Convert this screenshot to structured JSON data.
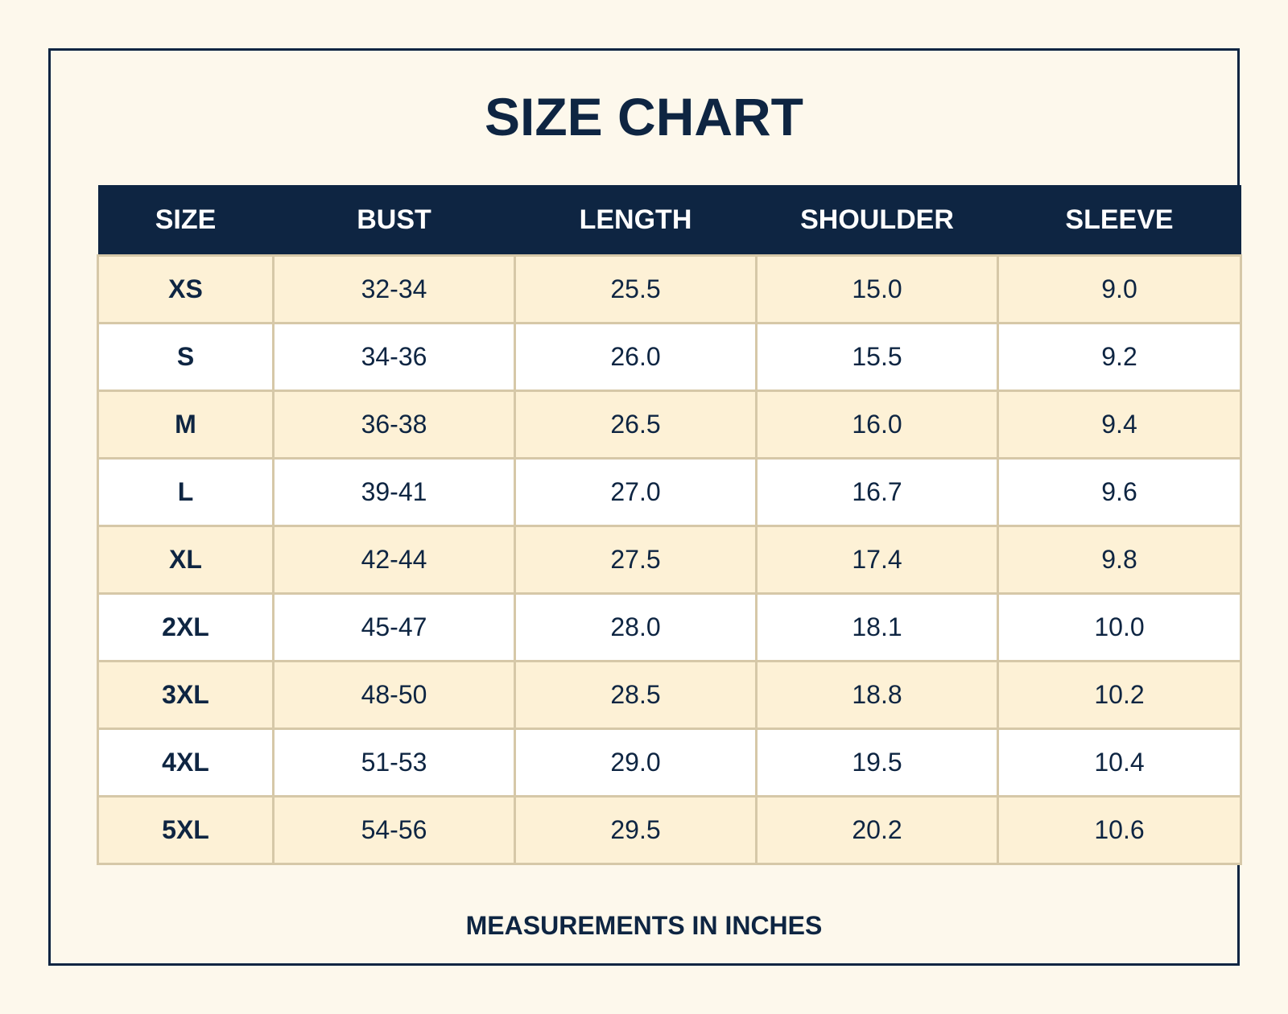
{
  "title": "SIZE CHART",
  "columns": [
    "SIZE",
    "BUST",
    "LENGTH",
    "SHOULDER",
    "SLEEVE"
  ],
  "rows": [
    {
      "size": "XS",
      "bust": "32-34",
      "length": "25.5",
      "shoulder": "15.0",
      "sleeve": "9.0"
    },
    {
      "size": "S",
      "bust": "34-36",
      "length": "26.0",
      "shoulder": "15.5",
      "sleeve": "9.2"
    },
    {
      "size": "M",
      "bust": "36-38",
      "length": "26.5",
      "shoulder": "16.0",
      "sleeve": "9.4"
    },
    {
      "size": "L",
      "bust": "39-41",
      "length": "27.0",
      "shoulder": "16.7",
      "sleeve": "9.6"
    },
    {
      "size": "XL",
      "bust": "42-44",
      "length": "27.5",
      "shoulder": "17.4",
      "sleeve": "9.8"
    },
    {
      "size": "2XL",
      "bust": "45-47",
      "length": "28.0",
      "shoulder": "18.1",
      "sleeve": "10.0"
    },
    {
      "size": "3XL",
      "bust": "48-50",
      "length": "28.5",
      "shoulder": "18.8",
      "sleeve": "10.2"
    },
    {
      "size": "4XL",
      "bust": "51-53",
      "length": "29.0",
      "shoulder": "19.5",
      "sleeve": "10.4"
    },
    {
      "size": "5XL",
      "bust": "54-56",
      "length": "29.5",
      "shoulder": "20.2",
      "sleeve": "10.6"
    }
  ],
  "footer": "MEASUREMENTS IN INCHES",
  "colors": {
    "navy": "#0e2542",
    "background": "#fdf8ec",
    "row_tint": "#fdf1d6",
    "row_white": "#ffffff",
    "grid": "#d6c8a8"
  }
}
